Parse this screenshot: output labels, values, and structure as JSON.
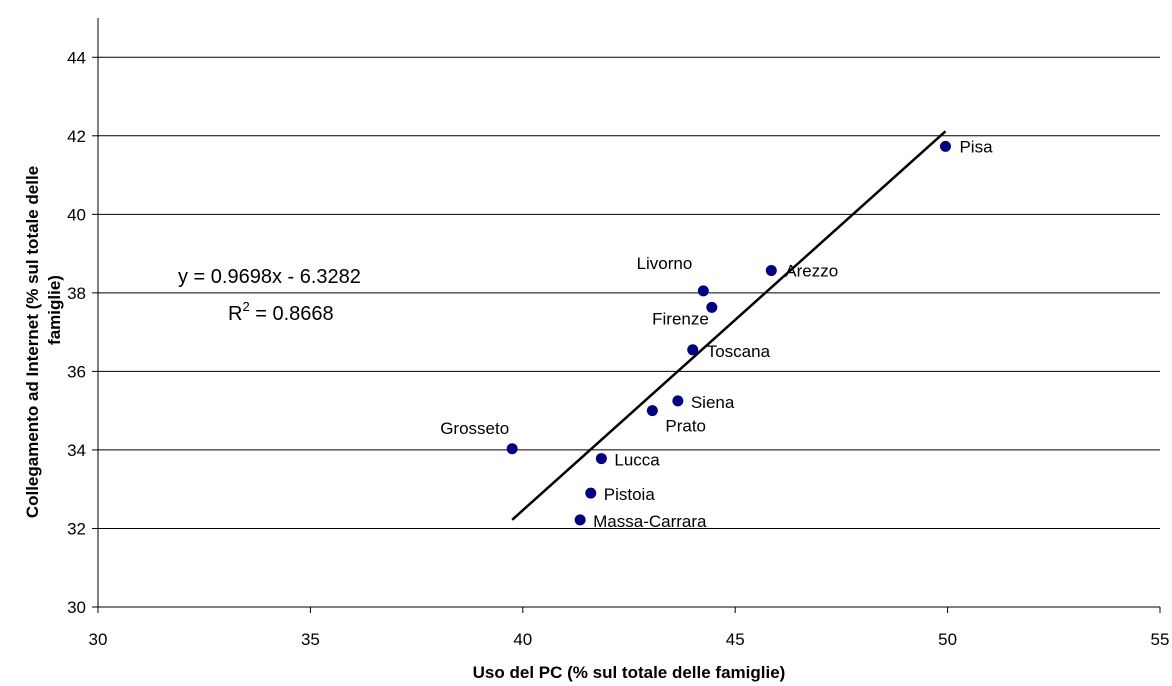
{
  "chart_data": {
    "type": "scatter",
    "xlabel": "Uso del PC (% sul totale delle famiglie)",
    "ylabel_line1": "Collegamento ad Internet (% sul totale delle",
    "ylabel_line2": "famiglie)",
    "xlim": [
      30,
      55
    ],
    "ylim": [
      30,
      45
    ],
    "xticks": [
      "30",
      "35",
      "40",
      "45",
      "50",
      "55"
    ],
    "yticks": [
      "30",
      "32",
      "34",
      "36",
      "38",
      "40",
      "42",
      "44"
    ],
    "grid": "horizontal",
    "points": [
      {
        "label": "Pisa",
        "x": 49.95,
        "y": 41.73
      },
      {
        "label": "Arezzo",
        "x": 45.85,
        "y": 38.57
      },
      {
        "label": "Livorno",
        "x": 44.25,
        "y": 38.05
      },
      {
        "label": "Firenze",
        "x": 44.45,
        "y": 37.63
      },
      {
        "label": "Toscana",
        "x": 44.0,
        "y": 36.55
      },
      {
        "label": "Siena",
        "x": 43.65,
        "y": 35.25
      },
      {
        "label": "Prato",
        "x": 43.05,
        "y": 35.0
      },
      {
        "label": "Grosseto",
        "x": 39.75,
        "y": 34.03
      },
      {
        "label": "Lucca",
        "x": 41.85,
        "y": 33.78
      },
      {
        "label": "Pistoia",
        "x": 41.6,
        "y": 32.9
      },
      {
        "label": "Massa-Carrara",
        "x": 41.35,
        "y": 32.22
      }
    ],
    "trendline": {
      "slope": 0.9698,
      "intercept": -6.3282,
      "x_range": [
        39.75,
        49.95
      ],
      "equation": "y = 0.9698x - 6.3282",
      "r2_prefix": "R",
      "r2_sup": "2",
      "r2_value": " = 0.8668"
    },
    "marker_color": "#000080"
  }
}
